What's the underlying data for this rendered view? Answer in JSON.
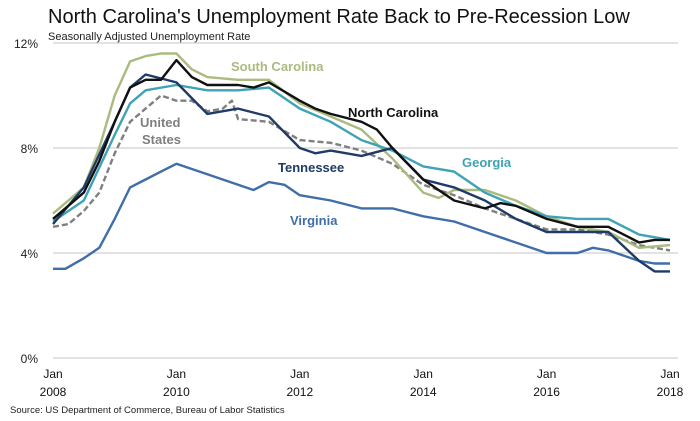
{
  "chart_data": {
    "type": "line",
    "title": "North Carolina's Unemployment Rate Back to Pre-Recession Low",
    "subtitle": "Seasonally Adjusted Unemployment Rate",
    "source": "Source: US Department of Commerce, Bureau of Labor Statistics",
    "xlim": [
      2008,
      2018
    ],
    "ylim": [
      0,
      12
    ],
    "x_ticks": [
      {
        "value": 2008,
        "line1": "Jan",
        "line2": "2008"
      },
      {
        "value": 2010,
        "line1": "Jan",
        "line2": "2010"
      },
      {
        "value": 2012,
        "line1": "Jan",
        "line2": "2012"
      },
      {
        "value": 2014,
        "line1": "Jan",
        "line2": "2014"
      },
      {
        "value": 2016,
        "line1": "Jan",
        "line2": "2016"
      },
      {
        "value": 2018,
        "line1": "Jan",
        "line2": "2018"
      }
    ],
    "y_ticks": [
      {
        "value": 0,
        "label": "0%"
      },
      {
        "value": 4,
        "label": "4%"
      },
      {
        "value": 8,
        "label": "8%"
      },
      {
        "value": 12,
        "label": "12%"
      }
    ],
    "grid": "horizontal",
    "series": [
      {
        "name": "Virginia",
        "color": "#3f6ea8",
        "dashed": false,
        "label_line1": "Virginia",
        "label_line2": "",
        "points": [
          [
            2008,
            3.4
          ],
          [
            2008.2,
            3.4
          ],
          [
            2008.5,
            3.8
          ],
          [
            2008.75,
            4.2
          ],
          [
            2009,
            5.3
          ],
          [
            2009.25,
            6.5
          ],
          [
            2009.5,
            6.8
          ],
          [
            2009.75,
            7.1
          ],
          [
            2010,
            7.4
          ],
          [
            2010.5,
            7.0
          ],
          [
            2011,
            6.6
          ],
          [
            2011.25,
            6.4
          ],
          [
            2011.5,
            6.7
          ],
          [
            2011.75,
            6.6
          ],
          [
            2012,
            6.2
          ],
          [
            2012.5,
            6.0
          ],
          [
            2013,
            5.7
          ],
          [
            2013.5,
            5.7
          ],
          [
            2014,
            5.4
          ],
          [
            2014.5,
            5.2
          ],
          [
            2015,
            4.8
          ],
          [
            2015.5,
            4.4
          ],
          [
            2016,
            4.0
          ],
          [
            2016.5,
            4.0
          ],
          [
            2016.75,
            4.2
          ],
          [
            2017,
            4.1
          ],
          [
            2017.5,
            3.7
          ],
          [
            2017.75,
            3.6
          ],
          [
            2018,
            3.6
          ]
        ]
      },
      {
        "name": "United States",
        "color": "#7f7f7f",
        "dashed": true,
        "label_line1": "United",
        "label_line2": "States",
        "points": [
          [
            2008,
            5.0
          ],
          [
            2008.25,
            5.1
          ],
          [
            2008.5,
            5.6
          ],
          [
            2008.75,
            6.3
          ],
          [
            2009,
            7.8
          ],
          [
            2009.25,
            9.0
          ],
          [
            2009.5,
            9.5
          ],
          [
            2009.75,
            10.0
          ],
          [
            2010,
            9.8
          ],
          [
            2010.25,
            9.8
          ],
          [
            2010.5,
            9.4
          ],
          [
            2010.75,
            9.5
          ],
          [
            2010.9,
            9.8
          ],
          [
            2011,
            9.1
          ],
          [
            2011.5,
            9.0
          ],
          [
            2012,
            8.3
          ],
          [
            2012.5,
            8.2
          ],
          [
            2013,
            7.9
          ],
          [
            2013.5,
            7.4
          ],
          [
            2014,
            6.6
          ],
          [
            2014.5,
            6.2
          ],
          [
            2015,
            5.7
          ],
          [
            2015.5,
            5.3
          ],
          [
            2016,
            4.9
          ],
          [
            2016.5,
            4.9
          ],
          [
            2017,
            4.7
          ],
          [
            2017.5,
            4.3
          ],
          [
            2018,
            4.1
          ]
        ]
      },
      {
        "name": "South Carolina",
        "color": "#a9bb7f",
        "dashed": false,
        "label_line1": "South Carolina",
        "label_line2": "",
        "points": [
          [
            2008,
            5.5
          ],
          [
            2008.5,
            6.5
          ],
          [
            2008.75,
            8.0
          ],
          [
            2009,
            10.0
          ],
          [
            2009.25,
            11.3
          ],
          [
            2009.5,
            11.5
          ],
          [
            2009.75,
            11.6
          ],
          [
            2010,
            11.6
          ],
          [
            2010.25,
            11.0
          ],
          [
            2010.5,
            10.7
          ],
          [
            2011,
            10.6
          ],
          [
            2011.5,
            10.6
          ],
          [
            2012,
            9.7
          ],
          [
            2012.5,
            9.2
          ],
          [
            2013,
            8.7
          ],
          [
            2013.5,
            7.6
          ],
          [
            2014,
            6.3
          ],
          [
            2014.25,
            6.1
          ],
          [
            2014.5,
            6.4
          ],
          [
            2015,
            6.4
          ],
          [
            2015.5,
            6.0
          ],
          [
            2016,
            5.4
          ],
          [
            2016.5,
            5.0
          ],
          [
            2017,
            4.8
          ],
          [
            2017.5,
            4.2
          ],
          [
            2018,
            4.3
          ]
        ]
      },
      {
        "name": "Georgia",
        "color": "#3fa3b5",
        "dashed": false,
        "label_line1": "Georgia",
        "label_line2": "",
        "points": [
          [
            2008,
            5.2
          ],
          [
            2008.5,
            6.0
          ],
          [
            2009,
            8.5
          ],
          [
            2009.25,
            9.7
          ],
          [
            2009.5,
            10.2
          ],
          [
            2010,
            10.4
          ],
          [
            2010.5,
            10.2
          ],
          [
            2011,
            10.2
          ],
          [
            2011.5,
            10.3
          ],
          [
            2012,
            9.5
          ],
          [
            2012.5,
            9.0
          ],
          [
            2013,
            8.3
          ],
          [
            2013.5,
            7.9
          ],
          [
            2014,
            7.3
          ],
          [
            2014.5,
            7.1
          ],
          [
            2015,
            6.3
          ],
          [
            2015.5,
            5.8
          ],
          [
            2016,
            5.4
          ],
          [
            2016.5,
            5.3
          ],
          [
            2017,
            5.3
          ],
          [
            2017.5,
            4.7
          ],
          [
            2018,
            4.5
          ]
        ]
      },
      {
        "name": "Tennessee",
        "color": "#1f3b66",
        "dashed": false,
        "label_line1": "Tennessee",
        "label_line2": "",
        "points": [
          [
            2008,
            5.1
          ],
          [
            2008.5,
            6.5
          ],
          [
            2009,
            9.0
          ],
          [
            2009.25,
            10.3
          ],
          [
            2009.5,
            10.8
          ],
          [
            2010,
            10.5
          ],
          [
            2010.25,
            9.9
          ],
          [
            2010.5,
            9.3
          ],
          [
            2011,
            9.5
          ],
          [
            2011.5,
            9.2
          ],
          [
            2012,
            8.0
          ],
          [
            2012.25,
            7.8
          ],
          [
            2012.5,
            7.9
          ],
          [
            2013,
            7.7
          ],
          [
            2013.5,
            8.0
          ],
          [
            2014,
            6.8
          ],
          [
            2014.5,
            6.5
          ],
          [
            2015,
            6.0
          ],
          [
            2015.5,
            5.3
          ],
          [
            2016,
            4.8
          ],
          [
            2016.5,
            4.8
          ],
          [
            2017,
            4.8
          ],
          [
            2017.5,
            3.7
          ],
          [
            2017.75,
            3.3
          ],
          [
            2018,
            3.3
          ]
        ]
      },
      {
        "name": "North Carolina",
        "color": "#111111",
        "dashed": false,
        "label_line1": "North Carolina",
        "label_line2": "",
        "points": [
          [
            2008,
            5.3
          ],
          [
            2008.5,
            6.3
          ],
          [
            2008.75,
            7.5
          ],
          [
            2009,
            9.0
          ],
          [
            2009.25,
            10.3
          ],
          [
            2009.5,
            10.6
          ],
          [
            2009.75,
            10.6
          ],
          [
            2010,
            11.35
          ],
          [
            2010.25,
            10.7
          ],
          [
            2010.5,
            10.4
          ],
          [
            2011,
            10.4
          ],
          [
            2011.25,
            10.3
          ],
          [
            2011.5,
            10.5
          ],
          [
            2012,
            9.8
          ],
          [
            2012.25,
            9.5
          ],
          [
            2012.5,
            9.3
          ],
          [
            2013,
            9.0
          ],
          [
            2013.25,
            8.7
          ],
          [
            2013.5,
            8.0
          ],
          [
            2014,
            6.8
          ],
          [
            2014.25,
            6.4
          ],
          [
            2014.5,
            6.0
          ],
          [
            2015,
            5.7
          ],
          [
            2015.25,
            5.9
          ],
          [
            2015.5,
            5.8
          ],
          [
            2016,
            5.3
          ],
          [
            2016.5,
            5.0
          ],
          [
            2017,
            5.0
          ],
          [
            2017.25,
            4.7
          ],
          [
            2017.5,
            4.4
          ],
          [
            2017.75,
            4.5
          ],
          [
            2018,
            4.5
          ]
        ]
      }
    ]
  }
}
